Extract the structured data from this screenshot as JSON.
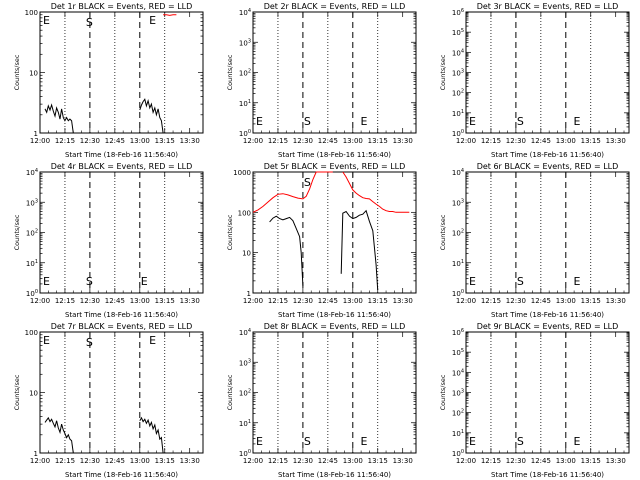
{
  "figure": {
    "colors": {
      "events": "#000000",
      "lld": "#ff0000",
      "background": "#ffffff"
    },
    "xtick_labels": [
      "12:00",
      "12:15",
      "12:30",
      "12:45",
      "13:00",
      "13:15",
      "13:30"
    ],
    "xlabel": "Start Time (18-Feb-16 11:56:40)",
    "ylabel": "Counts/sec",
    "dotted_lines_at": [
      "12:15",
      "12:45",
      "13:15"
    ],
    "dashed_lines_at": [
      "12:30",
      "13:00"
    ]
  },
  "chart_data": [
    {
      "type": "line",
      "title": "Det 1r BLACK = Events, RED = LLD",
      "xlabel": "Start Time (18-Feb-16 11:56:40)",
      "ylabel": "Counts/sec",
      "yscale": "log",
      "ylim": [
        1,
        100
      ],
      "ytick_labels": [
        {
          "v": 1,
          "t": "1"
        },
        {
          "v": 10,
          "t": "10"
        },
        {
          "v": 100,
          "t": "100"
        }
      ],
      "markers": [
        {
          "t": "12:00",
          "label": "E"
        },
        {
          "t": "12:30",
          "label": "S"
        },
        {
          "t": "13:08",
          "label": "E"
        }
      ],
      "series": [
        {
          "color": "#000000",
          "x": [
            "12:03",
            "12:04",
            "12:05",
            "12:06",
            "12:07",
            "12:08",
            "12:09",
            "12:10",
            "12:11",
            "12:12",
            "12:13",
            "12:14",
            "12:15",
            "12:16",
            "12:17",
            "12:18",
            "12:19",
            "12:20"
          ],
          "y": [
            2.5,
            2.2,
            2.8,
            2.4,
            2.9,
            2.3,
            1.9,
            2.6,
            2.2,
            1.7,
            2.5,
            1.8,
            1.6,
            1.8,
            1.6,
            1.7,
            1.6,
            1
          ]
        },
        {
          "color": "#000000",
          "x": [
            "13:00",
            "13:01",
            "13:02",
            "13:03",
            "13:04",
            "13:05",
            "13:06",
            "13:07",
            "13:08",
            "13:09",
            "13:10",
            "13:11",
            "13:12",
            "13:13",
            "13:14"
          ],
          "y": [
            2.4,
            2.9,
            3.3,
            3.6,
            2.8,
            3.4,
            2.6,
            3.0,
            2.2,
            2.6,
            2.0,
            2.5,
            1.8,
            1.6,
            1
          ]
        },
        {
          "color": "#ff0000",
          "x": [
            "13:14",
            "13:16",
            "13:18",
            "13:20",
            "13:22"
          ],
          "y": [
            90,
            90,
            88,
            90,
            90
          ]
        }
      ]
    },
    {
      "type": "line",
      "title": "Det 2r BLACK = Events, RED = LLD",
      "xlabel": "Start Time (18-Feb-16 11:56:40)",
      "ylabel": "Counts/sec",
      "yscale": "log",
      "ylim": [
        1,
        10000
      ],
      "ytick_labels": [
        {
          "v": 1,
          "t": "10^0"
        },
        {
          "v": 10,
          "t": "10^1"
        },
        {
          "v": 100,
          "t": "10^2"
        },
        {
          "v": 1000,
          "t": "10^3"
        },
        {
          "v": 10000,
          "t": "10^4"
        }
      ],
      "markers": [
        {
          "t": "12:00",
          "label": "E"
        },
        {
          "t": "12:33",
          "label": "S"
        },
        {
          "t": "13:07",
          "label": "E"
        }
      ],
      "series": []
    },
    {
      "type": "line",
      "title": "Det 3r BLACK = Events, RED = LLD",
      "xlabel": "Start Time (18-Feb-16 11:56:40)",
      "ylabel": "Counts/sec",
      "yscale": "log",
      "ylim": [
        1,
        1000000
      ],
      "ytick_labels": [
        {
          "v": 1,
          "t": "10^0"
        },
        {
          "v": 10,
          "t": "10^1"
        },
        {
          "v": 100,
          "t": "10^2"
        },
        {
          "v": 1000,
          "t": "10^3"
        },
        {
          "v": 10000,
          "t": "10^4"
        },
        {
          "v": 100000,
          "t": "10^5"
        },
        {
          "v": 1000000,
          "t": "10^6"
        }
      ],
      "markers": [
        {
          "t": "12:00",
          "label": "E"
        },
        {
          "t": "12:33",
          "label": "S"
        },
        {
          "t": "13:07",
          "label": "E"
        }
      ],
      "series": []
    },
    {
      "type": "line",
      "title": "Det 4r BLACK = Events, RED = LLD",
      "xlabel": "Start Time (18-Feb-16 11:56:40)",
      "ylabel": "Counts/sec",
      "yscale": "log",
      "ylim": [
        1,
        10000
      ],
      "ytick_labels": [
        {
          "v": 1,
          "t": "10^0"
        },
        {
          "v": 10,
          "t": "10^1"
        },
        {
          "v": 100,
          "t": "10^2"
        },
        {
          "v": 1000,
          "t": "10^3"
        },
        {
          "v": 10000,
          "t": "10^4"
        }
      ],
      "markers": [
        {
          "t": "12:00",
          "label": "E"
        },
        {
          "t": "12:30",
          "label": "S"
        },
        {
          "t": "13:03",
          "label": "E"
        }
      ],
      "series": []
    },
    {
      "type": "line",
      "title": "Det 5r BLACK = Events, RED = LLD",
      "xlabel": "Start Time (18-Feb-16 11:56:40)",
      "ylabel": "Counts/sec",
      "yscale": "log",
      "ylim": [
        1,
        1000
      ],
      "ytick_labels": [
        {
          "v": 1,
          "t": "1"
        },
        {
          "v": 10,
          "t": "10"
        },
        {
          "v": 100,
          "t": "100"
        },
        {
          "v": 1000,
          "t": "1000"
        }
      ],
      "markers": [
        {
          "t": "12:33",
          "label": "S"
        }
      ],
      "series": [
        {
          "color": "#ff0000",
          "x": [
            "12:00",
            "12:03",
            "12:06",
            "12:09",
            "12:12",
            "12:15",
            "12:18",
            "12:21",
            "12:24",
            "12:27",
            "12:30",
            "12:32",
            "12:34",
            "12:36",
            "12:38",
            "12:40",
            "12:42",
            "12:44",
            "12:46",
            "12:48"
          ],
          "y": [
            100,
            115,
            140,
            180,
            230,
            280,
            290,
            270,
            245,
            225,
            215,
            250,
            380,
            650,
            1000,
            1000,
            1000,
            1000,
            1000,
            1000
          ]
        },
        {
          "color": "#ff0000",
          "x": [
            "12:54",
            "12:56",
            "12:58",
            "13:00",
            "13:02",
            "13:04",
            "13:06",
            "13:08",
            "13:10",
            "13:12",
            "13:14",
            "13:16",
            "13:18",
            "13:20",
            "13:22",
            "13:24",
            "13:26",
            "13:28",
            "13:30",
            "13:32",
            "13:34"
          ],
          "y": [
            1000,
            750,
            520,
            360,
            300,
            260,
            230,
            220,
            215,
            185,
            160,
            140,
            120,
            110,
            105,
            105,
            100,
            100,
            100,
            100,
            100
          ]
        },
        {
          "color": "#000000",
          "x": [
            "12:10",
            "12:12",
            "12:14",
            "12:16",
            "12:18",
            "12:20",
            "12:22",
            "12:24",
            "12:26",
            "12:28",
            "12:29",
            "12:30"
          ],
          "y": [
            58,
            72,
            80,
            70,
            65,
            70,
            75,
            62,
            40,
            25,
            10,
            1.5
          ]
        },
        {
          "color": "#000000",
          "x": [
            "12:53",
            "12:54",
            "12:56",
            "12:58",
            "13:00",
            "13:02",
            "13:04",
            "13:06",
            "13:08",
            "13:10",
            "13:12",
            "13:14",
            "13:15"
          ],
          "y": [
            3,
            95,
            105,
            80,
            70,
            75,
            85,
            90,
            110,
            60,
            35,
            5,
            1.2
          ]
        }
      ]
    },
    {
      "type": "line",
      "title": "Det 6r BLACK = Events, RED = LLD",
      "xlabel": "Start Time (18-Feb-16 11:56:40)",
      "ylabel": "Counts/sec",
      "yscale": "log",
      "ylim": [
        1,
        10000
      ],
      "ytick_labels": [
        {
          "v": 1,
          "t": "10^0"
        },
        {
          "v": 10,
          "t": "10^1"
        },
        {
          "v": 100,
          "t": "10^2"
        },
        {
          "v": 1000,
          "t": "10^3"
        },
        {
          "v": 10000,
          "t": "10^4"
        }
      ],
      "markers": [
        {
          "t": "12:00",
          "label": "E"
        },
        {
          "t": "12:33",
          "label": "S"
        },
        {
          "t": "13:07",
          "label": "E"
        }
      ],
      "series": []
    },
    {
      "type": "line",
      "title": "Det 7r BLACK = Events, RED = LLD",
      "xlabel": "Start Time (18-Feb-16 11:56:40)",
      "ylabel": "Counts/sec",
      "yscale": "log",
      "ylim": [
        1,
        100
      ],
      "ytick_labels": [
        {
          "v": 1,
          "t": "1"
        },
        {
          "v": 10,
          "t": "10"
        },
        {
          "v": 100,
          "t": "100"
        }
      ],
      "markers": [
        {
          "t": "12:00",
          "label": "E"
        },
        {
          "t": "12:30",
          "label": "S"
        },
        {
          "t": "13:08",
          "label": "E"
        }
      ],
      "series": [
        {
          "color": "#000000",
          "x": [
            "12:03",
            "12:04",
            "12:05",
            "12:06",
            "12:07",
            "12:08",
            "12:09",
            "12:10",
            "12:11",
            "12:12",
            "12:13",
            "12:14",
            "12:15",
            "12:16",
            "12:17",
            "12:18",
            "12:19",
            "12:20"
          ],
          "y": [
            3.2,
            3.5,
            3.8,
            3.3,
            3.6,
            3.1,
            2.7,
            3.4,
            2.6,
            2.2,
            3.0,
            2.4,
            2.1,
            1.8,
            2.0,
            1.7,
            1.6,
            1
          ]
        },
        {
          "color": "#000000",
          "x": [
            "13:00",
            "13:01",
            "13:02",
            "13:03",
            "13:04",
            "13:05",
            "13:06",
            "13:07",
            "13:08",
            "13:09",
            "13:10",
            "13:11",
            "13:12",
            "13:13",
            "13:14"
          ],
          "y": [
            3.4,
            3.8,
            3.3,
            3.6,
            3.1,
            3.5,
            2.8,
            3.2,
            2.5,
            2.9,
            2.1,
            2.4,
            1.7,
            1.8,
            1
          ]
        }
      ]
    },
    {
      "type": "line",
      "title": "Det 8r BLACK = Events, RED = LLD",
      "xlabel": "Start Time (18-Feb-16 11:56:40)",
      "ylabel": "Counts/sec",
      "yscale": "log",
      "ylim": [
        1,
        10000
      ],
      "ytick_labels": [
        {
          "v": 1,
          "t": "10^0"
        },
        {
          "v": 10,
          "t": "10^1"
        },
        {
          "v": 100,
          "t": "10^2"
        },
        {
          "v": 1000,
          "t": "10^3"
        },
        {
          "v": 10000,
          "t": "10^4"
        }
      ],
      "markers": [
        {
          "t": "12:00",
          "label": "E"
        },
        {
          "t": "12:33",
          "label": "S"
        },
        {
          "t": "13:07",
          "label": "E"
        }
      ],
      "series": []
    },
    {
      "type": "line",
      "title": "Det 9r BLACK = Events, RED = LLD",
      "xlabel": "Start Time (18-Feb-16 11:56:40)",
      "ylabel": "Counts/sec",
      "yscale": "log",
      "ylim": [
        1,
        1000000
      ],
      "ytick_labels": [
        {
          "v": 1,
          "t": "10^0"
        },
        {
          "v": 10,
          "t": "10^1"
        },
        {
          "v": 100,
          "t": "10^2"
        },
        {
          "v": 1000,
          "t": "10^3"
        },
        {
          "v": 10000,
          "t": "10^4"
        },
        {
          "v": 100000,
          "t": "10^5"
        },
        {
          "v": 1000000,
          "t": "10^6"
        }
      ],
      "markers": [
        {
          "t": "12:00",
          "label": "E"
        },
        {
          "t": "12:33",
          "label": "S"
        },
        {
          "t": "13:07",
          "label": "E"
        }
      ],
      "series": []
    }
  ]
}
